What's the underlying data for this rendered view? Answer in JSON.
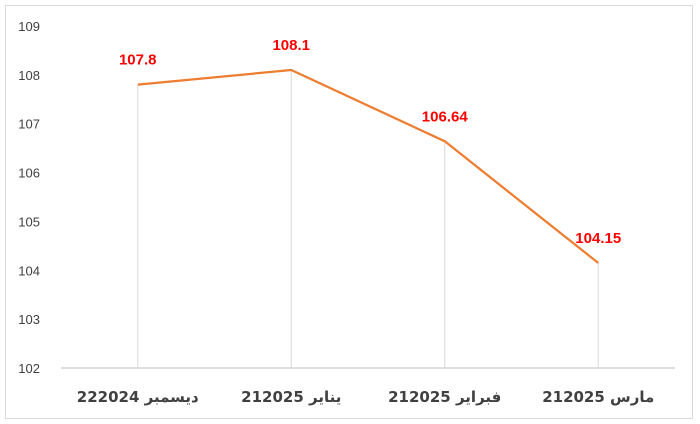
{
  "chart_data": {
    "type": "line",
    "categories": [
      "22ديسمبر 2024",
      "21يناير 2025",
      "21فبراير 2025",
      "21مارس 2025"
    ],
    "values": [
      107.8,
      108.1,
      106.64,
      104.15
    ],
    "data_labels": [
      "107.8",
      "108.1",
      "106.64",
      "104.15"
    ],
    "ylim": [
      102,
      109
    ],
    "y_ticks": [
      102,
      103,
      104,
      105,
      106,
      107,
      108,
      109
    ],
    "grid": "vertical drop lines only",
    "legend": "none",
    "colors": {
      "line": "#ED7D31",
      "labels": "#FF0000",
      "drop_lines": "#d9d9d9",
      "axis": "#bfbfbf",
      "text": "#404040"
    }
  }
}
